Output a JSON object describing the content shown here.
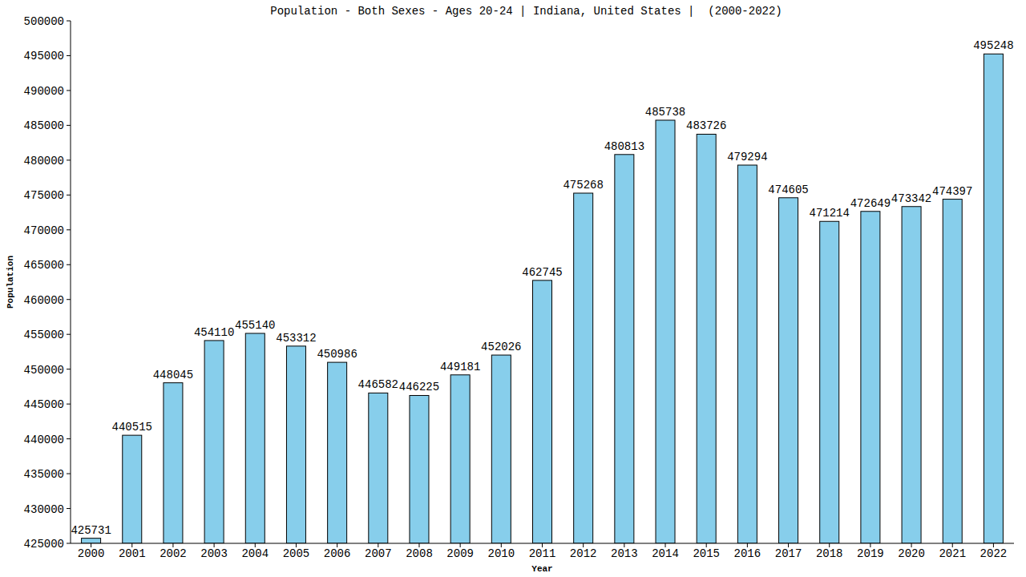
{
  "chart_data": {
    "type": "bar",
    "title": "Population - Both Sexes - Ages 20-24 | Indiana, United States |  (2000-2022)",
    "x_label": "Year",
    "y_label": "Population",
    "categories": [
      "2000",
      "2001",
      "2002",
      "2003",
      "2004",
      "2005",
      "2006",
      "2007",
      "2008",
      "2009",
      "2010",
      "2011",
      "2012",
      "2013",
      "2014",
      "2015",
      "2016",
      "2017",
      "2018",
      "2019",
      "2020",
      "2021",
      "2022"
    ],
    "values": [
      425731,
      440515,
      448045,
      454110,
      455140,
      453312,
      450986,
      446582,
      446225,
      449181,
      452026,
      462745,
      475268,
      480813,
      485738,
      483726,
      479294,
      474605,
      471214,
      472649,
      473342,
      474397,
      495248
    ],
    "color": "#87ceeb",
    "ylim": [
      425000,
      500000
    ],
    "yticks": [
      425000,
      430000,
      435000,
      440000,
      445000,
      450000,
      455000,
      460000,
      465000,
      470000,
      475000,
      480000,
      485000,
      490000,
      495000,
      500000
    ],
    "grid": false,
    "data_labels": true
  }
}
